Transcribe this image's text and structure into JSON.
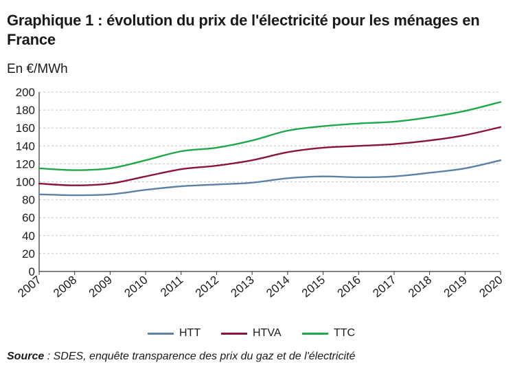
{
  "title": "Graphique 1 : évolution du prix de l'électricité pour les ménages en France",
  "unit": "En €/MWh",
  "source_label": "Source",
  "source_text": " : SDES, enquête transparence des prix du gaz et de l'électricité",
  "chart_data": {
    "type": "line",
    "x": [
      "2007",
      "2008",
      "2009",
      "2010",
      "2011",
      "2012",
      "2013",
      "2014",
      "2015",
      "2016",
      "2017",
      "2018",
      "2019",
      "2020"
    ],
    "ylim": [
      0,
      200
    ],
    "yticks": [
      0,
      20,
      40,
      60,
      80,
      100,
      120,
      140,
      160,
      180,
      200
    ],
    "grid": true,
    "legend_position": "bottom",
    "series": [
      {
        "name": "HTT",
        "color": "#5b82a6",
        "values": [
          86,
          85,
          86,
          91,
          95,
          97,
          99,
          104,
          106,
          105,
          106,
          110,
          115,
          124
        ]
      },
      {
        "name": "HTVA",
        "color": "#8a1538",
        "values": [
          98,
          96,
          98,
          106,
          114,
          118,
          124,
          133,
          138,
          140,
          142,
          146,
          152,
          161
        ]
      },
      {
        "name": "TTC",
        "color": "#1fa84a",
        "values": [
          115,
          113,
          115,
          124,
          134,
          138,
          146,
          157,
          162,
          165,
          167,
          172,
          179,
          189
        ]
      }
    ]
  }
}
